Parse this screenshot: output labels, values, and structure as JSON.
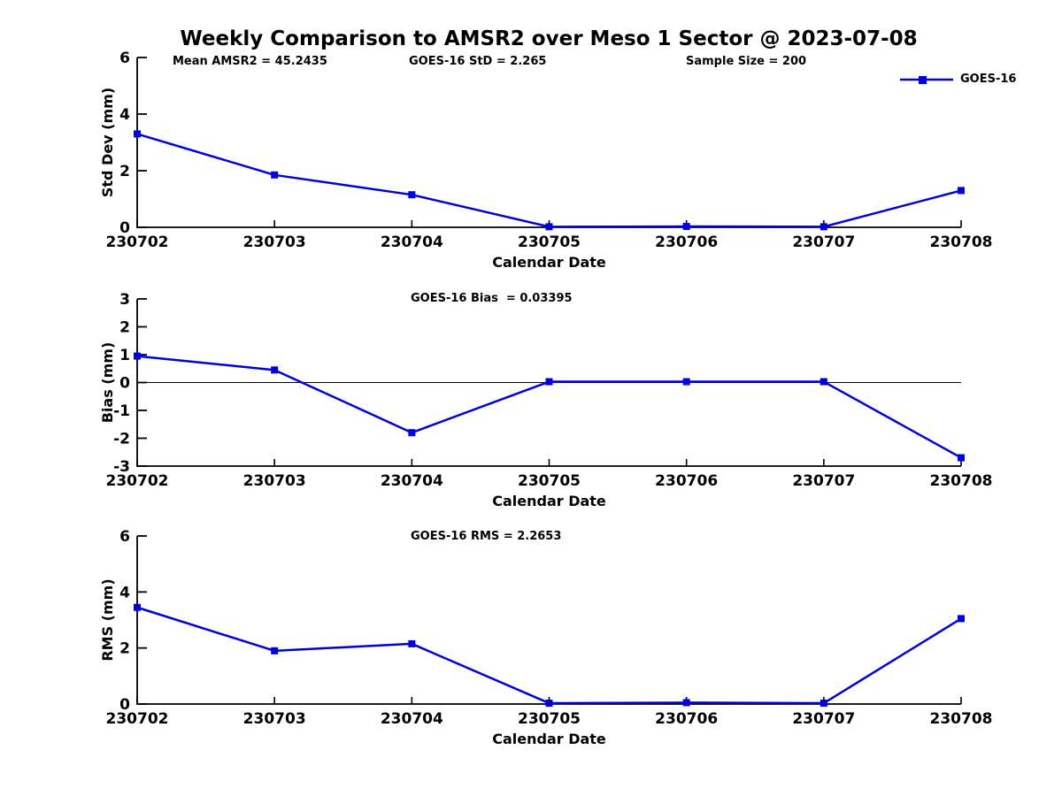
{
  "title": "Weekly Comparison to AMSR2 over Meso 1 Sector @ 2023-07-08",
  "annotations": {
    "mean_amsr2": "Mean AMSR2 = 45.2435",
    "goes16_std": "GOES-16 StD = 2.265",
    "sample_size": "Sample Size = 200",
    "goes16_bias": "GOES-16 Bias  = 0.03395",
    "goes16_rms": "GOES-16 RMS = 2.2653"
  },
  "legend": {
    "label": "GOES-16",
    "position": "top-right",
    "marker": "filled-square"
  },
  "colors": {
    "series": "#0000DD",
    "axis": "#000000",
    "text": "#000000",
    "background": "#ffffff"
  },
  "chart_data": [
    {
      "id": "stddev",
      "type": "line",
      "title": "",
      "categories": [
        "230702",
        "230703",
        "230704",
        "230705",
        "230706",
        "230707",
        "230708"
      ],
      "series": [
        {
          "name": "GOES-16",
          "values": [
            3.3,
            1.85,
            1.15,
            0.02,
            0.03,
            0.02,
            1.3
          ]
        }
      ],
      "xlabel": "Calendar Date",
      "ylabel": "Std Dev (mm)",
      "ylim": [
        0,
        6
      ],
      "yticks": [
        0,
        2,
        4,
        6
      ],
      "ytick_labels": [
        "0",
        "2",
        "4",
        "6"
      ],
      "grid": false,
      "zero_line": false,
      "marker": "square",
      "legend_position": "top-right"
    },
    {
      "id": "bias",
      "type": "line",
      "title": "",
      "categories": [
        "230702",
        "230703",
        "230704",
        "230705",
        "230706",
        "230707",
        "230708"
      ],
      "series": [
        {
          "name": "GOES-16",
          "values": [
            0.95,
            0.45,
            -1.8,
            0.03,
            0.03,
            0.03,
            -2.7
          ]
        }
      ],
      "xlabel": "Calendar Date",
      "ylabel": "Bias (mm)",
      "ylim": [
        -3,
        3
      ],
      "yticks": [
        -3,
        -2,
        -1,
        0,
        1,
        2,
        3
      ],
      "ytick_labels": [
        "-3",
        "-2",
        "-1",
        "0",
        "1",
        "2",
        "3"
      ],
      "grid": false,
      "zero_line": true,
      "marker": "square",
      "legend_position": "none"
    },
    {
      "id": "rms",
      "type": "line",
      "title": "",
      "categories": [
        "230702",
        "230703",
        "230704",
        "230705",
        "230706",
        "230707",
        "230708"
      ],
      "series": [
        {
          "name": "GOES-16",
          "values": [
            3.45,
            1.9,
            2.15,
            0.03,
            0.05,
            0.03,
            3.05
          ]
        }
      ],
      "xlabel": "Calendar Date",
      "ylabel": "RMS (mm)",
      "ylim": [
        0,
        6
      ],
      "yticks": [
        0,
        2,
        4,
        6
      ],
      "ytick_labels": [
        "0",
        "2",
        "4",
        "6"
      ],
      "grid": false,
      "zero_line": false,
      "marker": "square",
      "legend_position": "none"
    }
  ]
}
